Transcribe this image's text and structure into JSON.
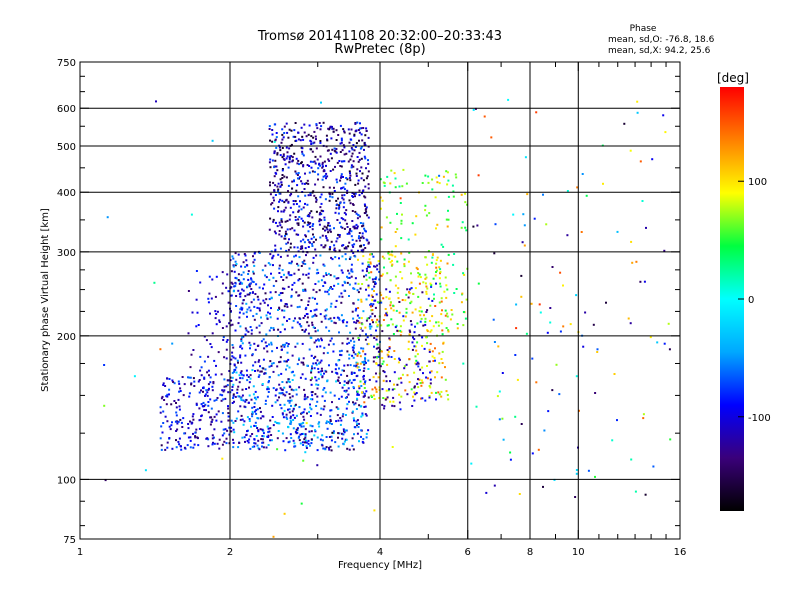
{
  "chart_data": {
    "type": "scatter",
    "title": "Tromsø 20141108 20:32:00–20:33:43",
    "subtitle": "RwPretec (8p)",
    "xlabel": "Frequency [MHz]",
    "ylabel": "Stationary phase Virtual Height [km]",
    "x_scale": "log",
    "y_scale": "log",
    "xlim": [
      1,
      16
    ],
    "ylim": [
      75,
      750
    ],
    "xticks": [
      1,
      2,
      4,
      6,
      8,
      10,
      16
    ],
    "yticks": [
      75,
      100,
      200,
      300,
      400,
      500,
      600,
      750
    ],
    "x_gridlines": [
      2,
      4,
      6,
      8,
      10
    ],
    "y_gridlines": [
      100,
      200,
      300,
      400,
      500,
      600
    ],
    "grid": true,
    "stats": {
      "title": "Phase",
      "line_o": "mean, sd,O: -76.8, 18.6",
      "line_x": "mean, sd,X:  94.2, 25.6"
    },
    "colorbar": {
      "unit": "[deg]",
      "range": [
        -180,
        180
      ],
      "tick_labels": [
        "100",
        "0",
        "-100"
      ],
      "tick_values": [
        100,
        0,
        -100
      ],
      "colors": [
        "#000000",
        "#3a007a",
        "#0000ff",
        "#00a8ff",
        "#00ffff",
        "#00ff40",
        "#ffff00",
        "#ff8000",
        "#ff0000"
      ]
    },
    "clusters": [
      {
        "fmin": 1.45,
        "fmax": 2.0,
        "hmin": 115,
        "hmax": 165,
        "n": 220,
        "pmin": -150,
        "pmax": -60
      },
      {
        "fmin": 1.65,
        "fmax": 2.3,
        "hmin": 165,
        "hmax": 275,
        "n": 110,
        "pmin": -140,
        "pmax": -70
      },
      {
        "fmin": 2.0,
        "fmax": 3.8,
        "hmin": 115,
        "hmax": 180,
        "n": 650,
        "pmin": -150,
        "pmax": -20
      },
      {
        "fmin": 2.0,
        "fmax": 4.0,
        "hmin": 180,
        "hmax": 300,
        "n": 550,
        "pmin": -150,
        "pmax": -40
      },
      {
        "fmin": 2.4,
        "fmax": 3.8,
        "hmin": 300,
        "hmax": 560,
        "n": 700,
        "pmin": -170,
        "pmax": -60
      },
      {
        "fmin": 3.6,
        "fmax": 5.5,
        "hmin": 145,
        "hmax": 300,
        "n": 280,
        "pmin": 40,
        "pmax": 150
      },
      {
        "fmin": 4.0,
        "fmax": 6.0,
        "hmin": 200,
        "hmax": 450,
        "n": 160,
        "pmin": 20,
        "pmax": 120
      },
      {
        "fmin": 3.7,
        "fmax": 5.2,
        "hmin": 140,
        "hmax": 260,
        "n": 120,
        "pmin": -150,
        "pmax": -70
      },
      {
        "fmin": 6.0,
        "fmax": 15.5,
        "hmin": 90,
        "hmax": 630,
        "n": 130,
        "pmin": -170,
        "pmax": 170
      },
      {
        "fmin": 1.0,
        "fmax": 6.0,
        "hmin": 75,
        "hmax": 650,
        "n": 35,
        "pmin": -170,
        "pmax": 170
      }
    ]
  }
}
